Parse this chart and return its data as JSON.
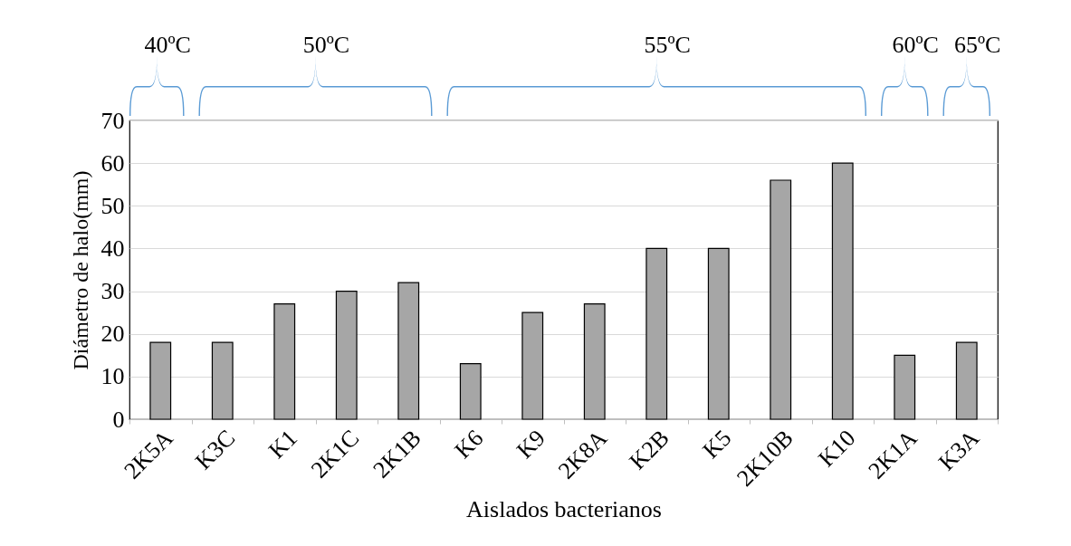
{
  "chart_data": {
    "type": "bar",
    "categories": [
      "2K5A",
      "K3C",
      "K1",
      "2K1C",
      "2K1B",
      "K6",
      "K9",
      "2K8A",
      "K2B",
      "K5",
      "2K10B",
      "K10",
      "2K1A",
      "K3A"
    ],
    "values": [
      18,
      18,
      27,
      30,
      32,
      13,
      25,
      27,
      40,
      40,
      56,
      60,
      15,
      18
    ],
    "color": "#a6a6a6",
    "xlabel": "Aislados bacterianos",
    "ylabel": "Diámetro de halo(mm)",
    "ylim": [
      0,
      70
    ],
    "yticks": [
      0,
      10,
      20,
      30,
      40,
      50,
      60,
      70
    ],
    "grid": "y",
    "annotations": [
      "40ºC",
      "50ºC",
      "55ºC",
      "60ºC",
      "65ºC"
    ]
  }
}
